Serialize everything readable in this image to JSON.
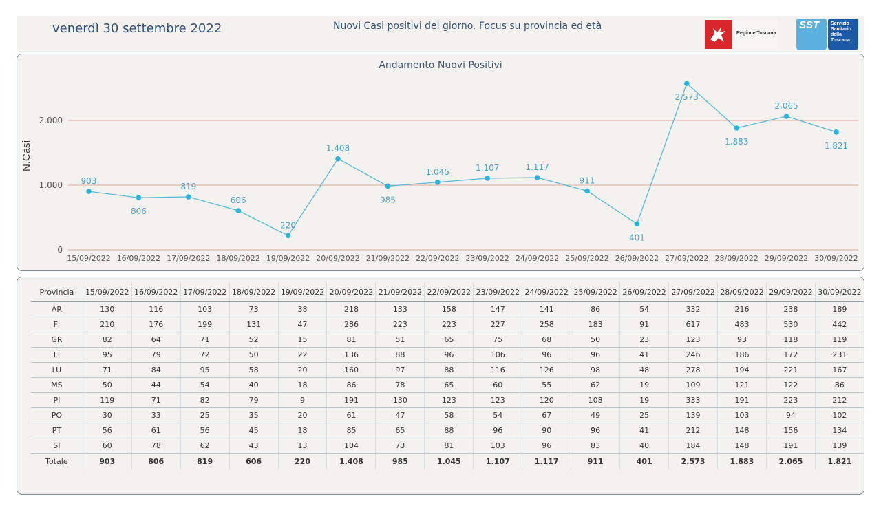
{
  "header": {
    "date": "venerdì 30 settembre 2022",
    "title": "Nuovi Casi positivi del giorno. Focus su provincia ed età",
    "logo_rt_text": "Regione Toscana",
    "logo_sst_short": "SST",
    "logo_sst_text": "Servizio\nSanitario\ndella\nToscana"
  },
  "colors": {
    "line": "#5ab8d8",
    "point": "#2ab4dc",
    "label": "#4a9fc7",
    "grid": "#e2a89a"
  },
  "chart_data": {
    "type": "line",
    "title": "Andamento Nuovi Positivi",
    "ylabel": "N.Casi",
    "xlabel": "",
    "categories": [
      "15/09/2022",
      "16/09/2022",
      "17/09/2022",
      "18/09/2022",
      "19/09/2022",
      "20/09/2022",
      "21/09/2022",
      "22/09/2022",
      "23/09/2022",
      "24/09/2022",
      "25/09/2022",
      "26/09/2022",
      "27/09/2022",
      "28/09/2022",
      "29/09/2022",
      "30/09/2022"
    ],
    "values": [
      903,
      806,
      819,
      606,
      220,
      1408,
      985,
      1045,
      1107,
      1117,
      911,
      401,
      2573,
      1883,
      2065,
      1821
    ],
    "value_labels": [
      "903",
      "806",
      "819",
      "606",
      "220",
      "1.408",
      "985",
      "1.045",
      "1.107",
      "1.117",
      "911",
      "401",
      "2.573",
      "1.883",
      "2.065",
      "1.821"
    ],
    "label_position": [
      "above",
      "below",
      "above",
      "above",
      "above",
      "above",
      "below",
      "above",
      "above",
      "above",
      "above",
      "below",
      "below",
      "below",
      "above",
      "below"
    ],
    "yticks": [
      0,
      1000,
      2000
    ],
    "ytick_labels": [
      "0",
      "1.000",
      "2.000"
    ],
    "ylim": [
      0,
      2900
    ],
    "grid": true
  },
  "table": {
    "header_label": "Provincia",
    "dates": [
      "15/09/2022",
      "16/09/2022",
      "17/09/2022",
      "18/09/2022",
      "19/09/2022",
      "20/09/2022",
      "21/09/2022",
      "22/09/2022",
      "23/09/2022",
      "24/09/2022",
      "25/09/2022",
      "26/09/2022",
      "27/09/2022",
      "28/09/2022",
      "29/09/2022",
      "30/09/2022"
    ],
    "rows": [
      {
        "prov": "AR",
        "values": [
          130,
          116,
          103,
          73,
          38,
          218,
          133,
          158,
          147,
          141,
          86,
          54,
          332,
          216,
          238,
          189
        ]
      },
      {
        "prov": "FI",
        "values": [
          210,
          176,
          199,
          131,
          47,
          286,
          223,
          223,
          227,
          258,
          183,
          91,
          617,
          483,
          530,
          442
        ]
      },
      {
        "prov": "GR",
        "values": [
          82,
          64,
          71,
          52,
          15,
          81,
          51,
          65,
          75,
          68,
          50,
          23,
          123,
          93,
          118,
          119
        ]
      },
      {
        "prov": "LI",
        "values": [
          95,
          79,
          72,
          50,
          22,
          136,
          88,
          96,
          106,
          96,
          96,
          41,
          246,
          186,
          172,
          231
        ]
      },
      {
        "prov": "LU",
        "values": [
          71,
          84,
          95,
          58,
          20,
          160,
          97,
          88,
          116,
          126,
          98,
          48,
          278,
          194,
          221,
          167
        ]
      },
      {
        "prov": "MS",
        "values": [
          50,
          44,
          54,
          40,
          18,
          86,
          78,
          65,
          60,
          55,
          62,
          19,
          109,
          121,
          122,
          86
        ]
      },
      {
        "prov": "PI",
        "values": [
          119,
          71,
          82,
          79,
          9,
          191,
          130,
          123,
          123,
          120,
          108,
          19,
          333,
          191,
          223,
          212
        ]
      },
      {
        "prov": "PO",
        "values": [
          30,
          33,
          25,
          35,
          20,
          61,
          47,
          58,
          54,
          67,
          49,
          25,
          139,
          103,
          94,
          102
        ]
      },
      {
        "prov": "PT",
        "values": [
          56,
          61,
          56,
          45,
          18,
          85,
          65,
          88,
          96,
          90,
          96,
          41,
          212,
          148,
          156,
          134
        ]
      },
      {
        "prov": "SI",
        "values": [
          60,
          78,
          62,
          43,
          13,
          104,
          73,
          81,
          103,
          96,
          83,
          40,
          184,
          148,
          191,
          139
        ]
      }
    ],
    "total_label": "Totale",
    "totals": [
      "903",
      "806",
      "819",
      "606",
      "220",
      "1.408",
      "985",
      "1.045",
      "1.107",
      "1.117",
      "911",
      "401",
      "2.573",
      "1.883",
      "2.065",
      "1.821"
    ]
  }
}
